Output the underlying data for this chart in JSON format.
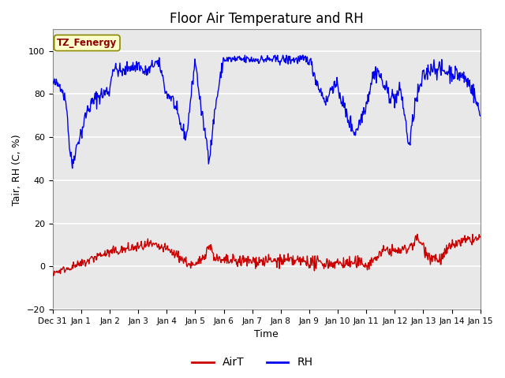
{
  "title": "Floor Air Temperature and RH",
  "ylabel": "Tair, RH (C, %)",
  "xlabel": "Time",
  "ylim": [
    -20,
    110
  ],
  "yticks": [
    -20,
    0,
    20,
    40,
    60,
    80,
    100
  ],
  "xtick_labels": [
    "Dec 31",
    "Jan 1",
    "Jan 2",
    "Jan 3",
    "Jan 4",
    "Jan 5",
    "Jan 6",
    "Jan 7",
    "Jan 8",
    "Jan 9",
    "Jan 10",
    "Jan 11",
    "Jan 12",
    "Jan 13",
    "Jan 14",
    "Jan 15"
  ],
  "annotation_text": "TZ_Fenergy",
  "annotation_bg": "#ffffcc",
  "annotation_color": "#8b0000",
  "line_airt_color": "#cc0000",
  "line_rh_color": "#0000ee",
  "bg_color": "#e8e8e8",
  "grid_color": "white",
  "title_fontsize": 12,
  "label_fontsize": 9,
  "tick_fontsize": 8
}
